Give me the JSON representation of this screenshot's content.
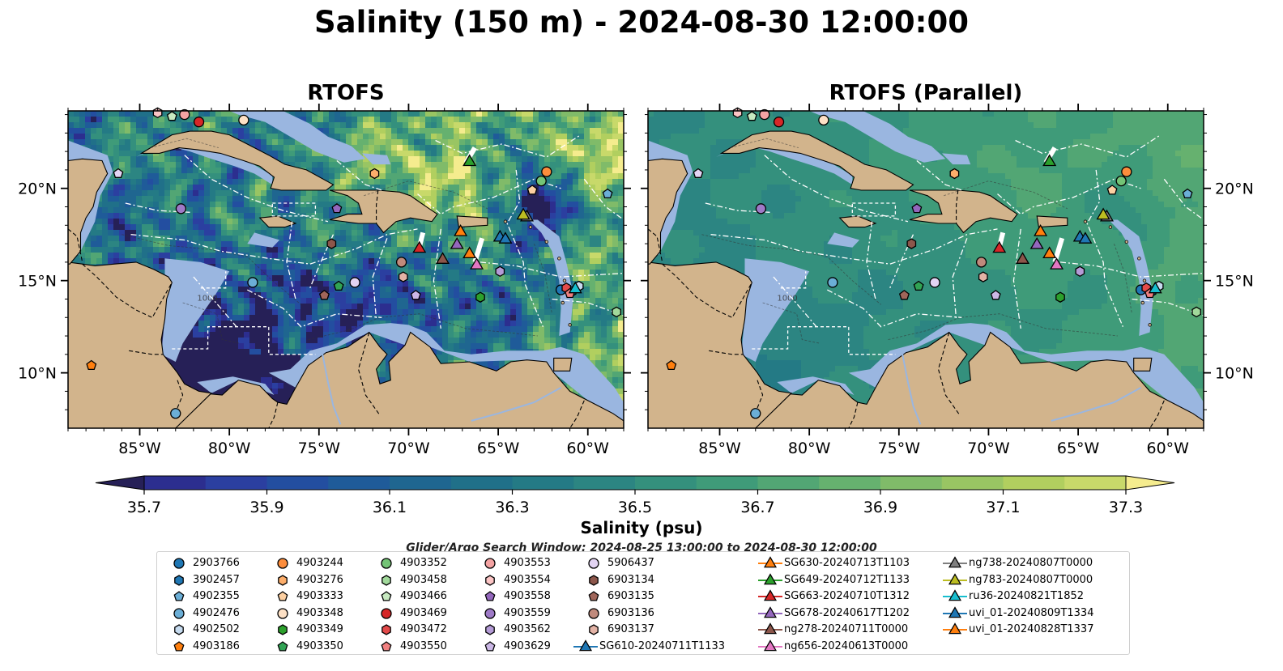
{
  "title": "Salinity (150 m) - 2024-08-30 12:00:00",
  "panels": [
    {
      "title": "RTOFS",
      "style": "variable"
    },
    {
      "title": "RTOFS (Parallel)",
      "style": "smooth"
    }
  ],
  "map": {
    "lon_range": [
      -89,
      -58
    ],
    "lat_range": [
      7,
      24.2
    ],
    "lon_ticks": [
      {
        "value": -85,
        "label": "85°W"
      },
      {
        "value": -80,
        "label": "80°W"
      },
      {
        "value": -75,
        "label": "75°W"
      },
      {
        "value": -70,
        "label": "70°W"
      },
      {
        "value": -65,
        "label": "65°W"
      },
      {
        "value": -60,
        "label": "60°W"
      }
    ],
    "lat_ticks": [
      {
        "value": 10,
        "label": "10°N"
      },
      {
        "value": 15,
        "label": "15°N"
      },
      {
        "value": 20,
        "label": "20°N"
      }
    ],
    "land_color": "#d2b48c",
    "shelf_color": "#9ab6e0",
    "contour_label": "1000"
  },
  "colorbar": {
    "label": "Salinity (psu)",
    "vmin": 35.6,
    "vmax": 37.4,
    "step": 0.1,
    "extend": "both",
    "ticks": [
      35.7,
      35.9,
      36.1,
      36.3,
      36.5,
      36.7,
      36.9,
      37.1,
      37.3
    ],
    "tick_labels": [
      "35.7",
      "35.9",
      "36.1",
      "36.3",
      "36.5",
      "36.7",
      "36.9",
      "37.1",
      "37.3"
    ],
    "colors": [
      "#262057",
      "#2c2e8f",
      "#2b3fa0",
      "#234ea0",
      "#1f5b99",
      "#1f6690",
      "#207089",
      "#247a85",
      "#2c8582",
      "#34907d",
      "#3f9b79",
      "#52a674",
      "#66b16f",
      "#80bb69",
      "#99c563",
      "#b1cf5f",
      "#c8d96a",
      "#f5ec8e"
    ]
  },
  "search_window": "Glider/Argo Search Window: 2024-08-25 13:00:00 to 2024-08-30 12:00:00",
  "argo": [
    {
      "id": "2903766",
      "shape": "circle",
      "color": "#1f77b4",
      "lon": -61.5,
      "lat": 14.5
    },
    {
      "id": "3902457",
      "shape": "hexagon",
      "color": "#1f77b4",
      "lon": -60.9,
      "lat": 14.4
    },
    {
      "id": "4902355",
      "shape": "pentagon",
      "color": "#6baed6",
      "lon": -58.9,
      "lat": 19.7
    },
    {
      "id": "4902476",
      "shape": "circle",
      "color": "#6baed6",
      "lon": -78.7,
      "lat": 14.9
    },
    {
      "id": "4902502",
      "shape": "hexagon",
      "color": "#c6dbef",
      "lon": -60.5,
      "lat": 14.7
    },
    {
      "id": "4903186",
      "shape": "pentagon",
      "color": "#ff7f0e",
      "lon": -87.7,
      "lat": 10.4
    },
    {
      "id": "4903244",
      "shape": "circle",
      "color": "#fd8d3c",
      "lon": -62.3,
      "lat": 20.9
    },
    {
      "id": "4903276",
      "shape": "hexagon",
      "color": "#fdae6b",
      "lon": -71.9,
      "lat": 20.8
    },
    {
      "id": "4903333",
      "shape": "pentagon",
      "color": "#fdd0a2",
      "lon": -63.1,
      "lat": 19.9
    },
    {
      "id": "4903348",
      "shape": "circle",
      "color": "#fde0c5",
      "lon": -79.2,
      "lat": 23.7
    },
    {
      "id": "4903349",
      "shape": "hexagon",
      "color": "#2ca02c",
      "lon": -66.0,
      "lat": 14.1
    },
    {
      "id": "4903350",
      "shape": "pentagon",
      "color": "#31a354",
      "lon": -73.9,
      "lat": 14.7
    },
    {
      "id": "4903352",
      "shape": "circle",
      "color": "#74c476",
      "lon": -62.6,
      "lat": 20.4
    },
    {
      "id": "4903458",
      "shape": "hexagon",
      "color": "#a1d99b",
      "lon": -58.4,
      "lat": 13.3
    },
    {
      "id": "4903466",
      "shape": "pentagon",
      "color": "#c7e9c0",
      "lon": -83.2,
      "lat": 23.9
    },
    {
      "id": "4903469",
      "shape": "circle",
      "color": "#d62728",
      "lon": -81.7,
      "lat": 23.6
    },
    {
      "id": "4903472",
      "shape": "hexagon",
      "color": "#e34a4a",
      "lon": -61.2,
      "lat": 14.6
    },
    {
      "id": "4903550",
      "shape": "pentagon",
      "color": "#f08080",
      "lon": -61.0,
      "lat": 14.3
    },
    {
      "id": "4903553",
      "shape": "circle",
      "color": "#f4a3a3",
      "lon": -82.5,
      "lat": 24.0
    },
    {
      "id": "4903554",
      "shape": "hexagon",
      "color": "#fcc5c5",
      "lon": -84.0,
      "lat": 24.1
    },
    {
      "id": "4903558",
      "shape": "pentagon",
      "color": "#9467bd",
      "lon": -74.0,
      "lat": 18.9
    },
    {
      "id": "4903559",
      "shape": "circle",
      "color": "#9e7ac7",
      "lon": -82.7,
      "lat": 18.9
    },
    {
      "id": "4903562",
      "shape": "hexagon",
      "color": "#b49bd6",
      "lon": -64.9,
      "lat": 15.5
    },
    {
      "id": "4903629",
      "shape": "pentagon",
      "color": "#cbb7e6",
      "lon": -69.6,
      "lat": 14.2
    },
    {
      "id": "5906437",
      "shape": "circle",
      "color": "#e3d4f3",
      "lon": -73.0,
      "lat": 14.9
    },
    {
      "id": "6903134",
      "shape": "hexagon",
      "color": "#8c564b",
      "lon": -74.3,
      "lat": 17.0
    },
    {
      "id": "6903135",
      "shape": "pentagon",
      "color": "#a0665a",
      "lon": -74.7,
      "lat": 14.2
    },
    {
      "id": "6903136",
      "shape": "circle",
      "color": "#c08a7c",
      "lon": -70.4,
      "lat": 16.0
    },
    {
      "id": "6903137",
      "shape": "hexagon",
      "color": "#e3b3a6",
      "lon": -70.3,
      "lat": 15.2
    },
    {
      "id": "4902502b",
      "shape": "pentagon",
      "color": "#e3d4f3",
      "lon": -86.2,
      "lat": 20.8,
      "hidden_label": true
    },
    {
      "id": "4903348b",
      "shape": "circle",
      "color": "#6baed6",
      "lon": -83.0,
      "lat": 7.8,
      "hidden_label": true
    }
  ],
  "gliders": [
    {
      "id": "SG610-20240711T1133",
      "color": "#1f77b4",
      "lon": -64.9,
      "lat": 17.4
    },
    {
      "id": "SG630-20240713T1103",
      "color": "#ff7f0e",
      "lon": -67.1,
      "lat": 17.7
    },
    {
      "id": "SG649-20240712T1133",
      "color": "#2ca02c",
      "lon": -66.6,
      "lat": 21.5
    },
    {
      "id": "SG663-20240710T1312",
      "color": "#d62728",
      "lon": -69.4,
      "lat": 16.8
    },
    {
      "id": "SG678-20240617T1202",
      "color": "#9467bd",
      "lon": -67.3,
      "lat": 17.0
    },
    {
      "id": "ng278-20240711T0000",
      "color": "#8c564b",
      "lon": -68.1,
      "lat": 16.2
    },
    {
      "id": "ng656-20240613T0000",
      "color": "#e377c2",
      "lon": -66.2,
      "lat": 15.9
    },
    {
      "id": "ng738-20240807T0000",
      "color": "#7f7f7f",
      "lon": -63.4,
      "lat": 18.5
    },
    {
      "id": "ng783-20240807T0000",
      "color": "#bcbd22",
      "lon": -63.6,
      "lat": 18.6
    },
    {
      "id": "ru36-20240821T1852",
      "color": "#17becf",
      "lon": -60.7,
      "lat": 14.6
    },
    {
      "id": "uvi_01-20240809T1334",
      "color": "#1f77b4",
      "lon": -64.6,
      "lat": 17.3,
      "hidden": true
    },
    {
      "id": "uvi_01-20240828T1337",
      "color": "#ff7f0e",
      "lon": -66.6,
      "lat": 16.5
    }
  ]
}
